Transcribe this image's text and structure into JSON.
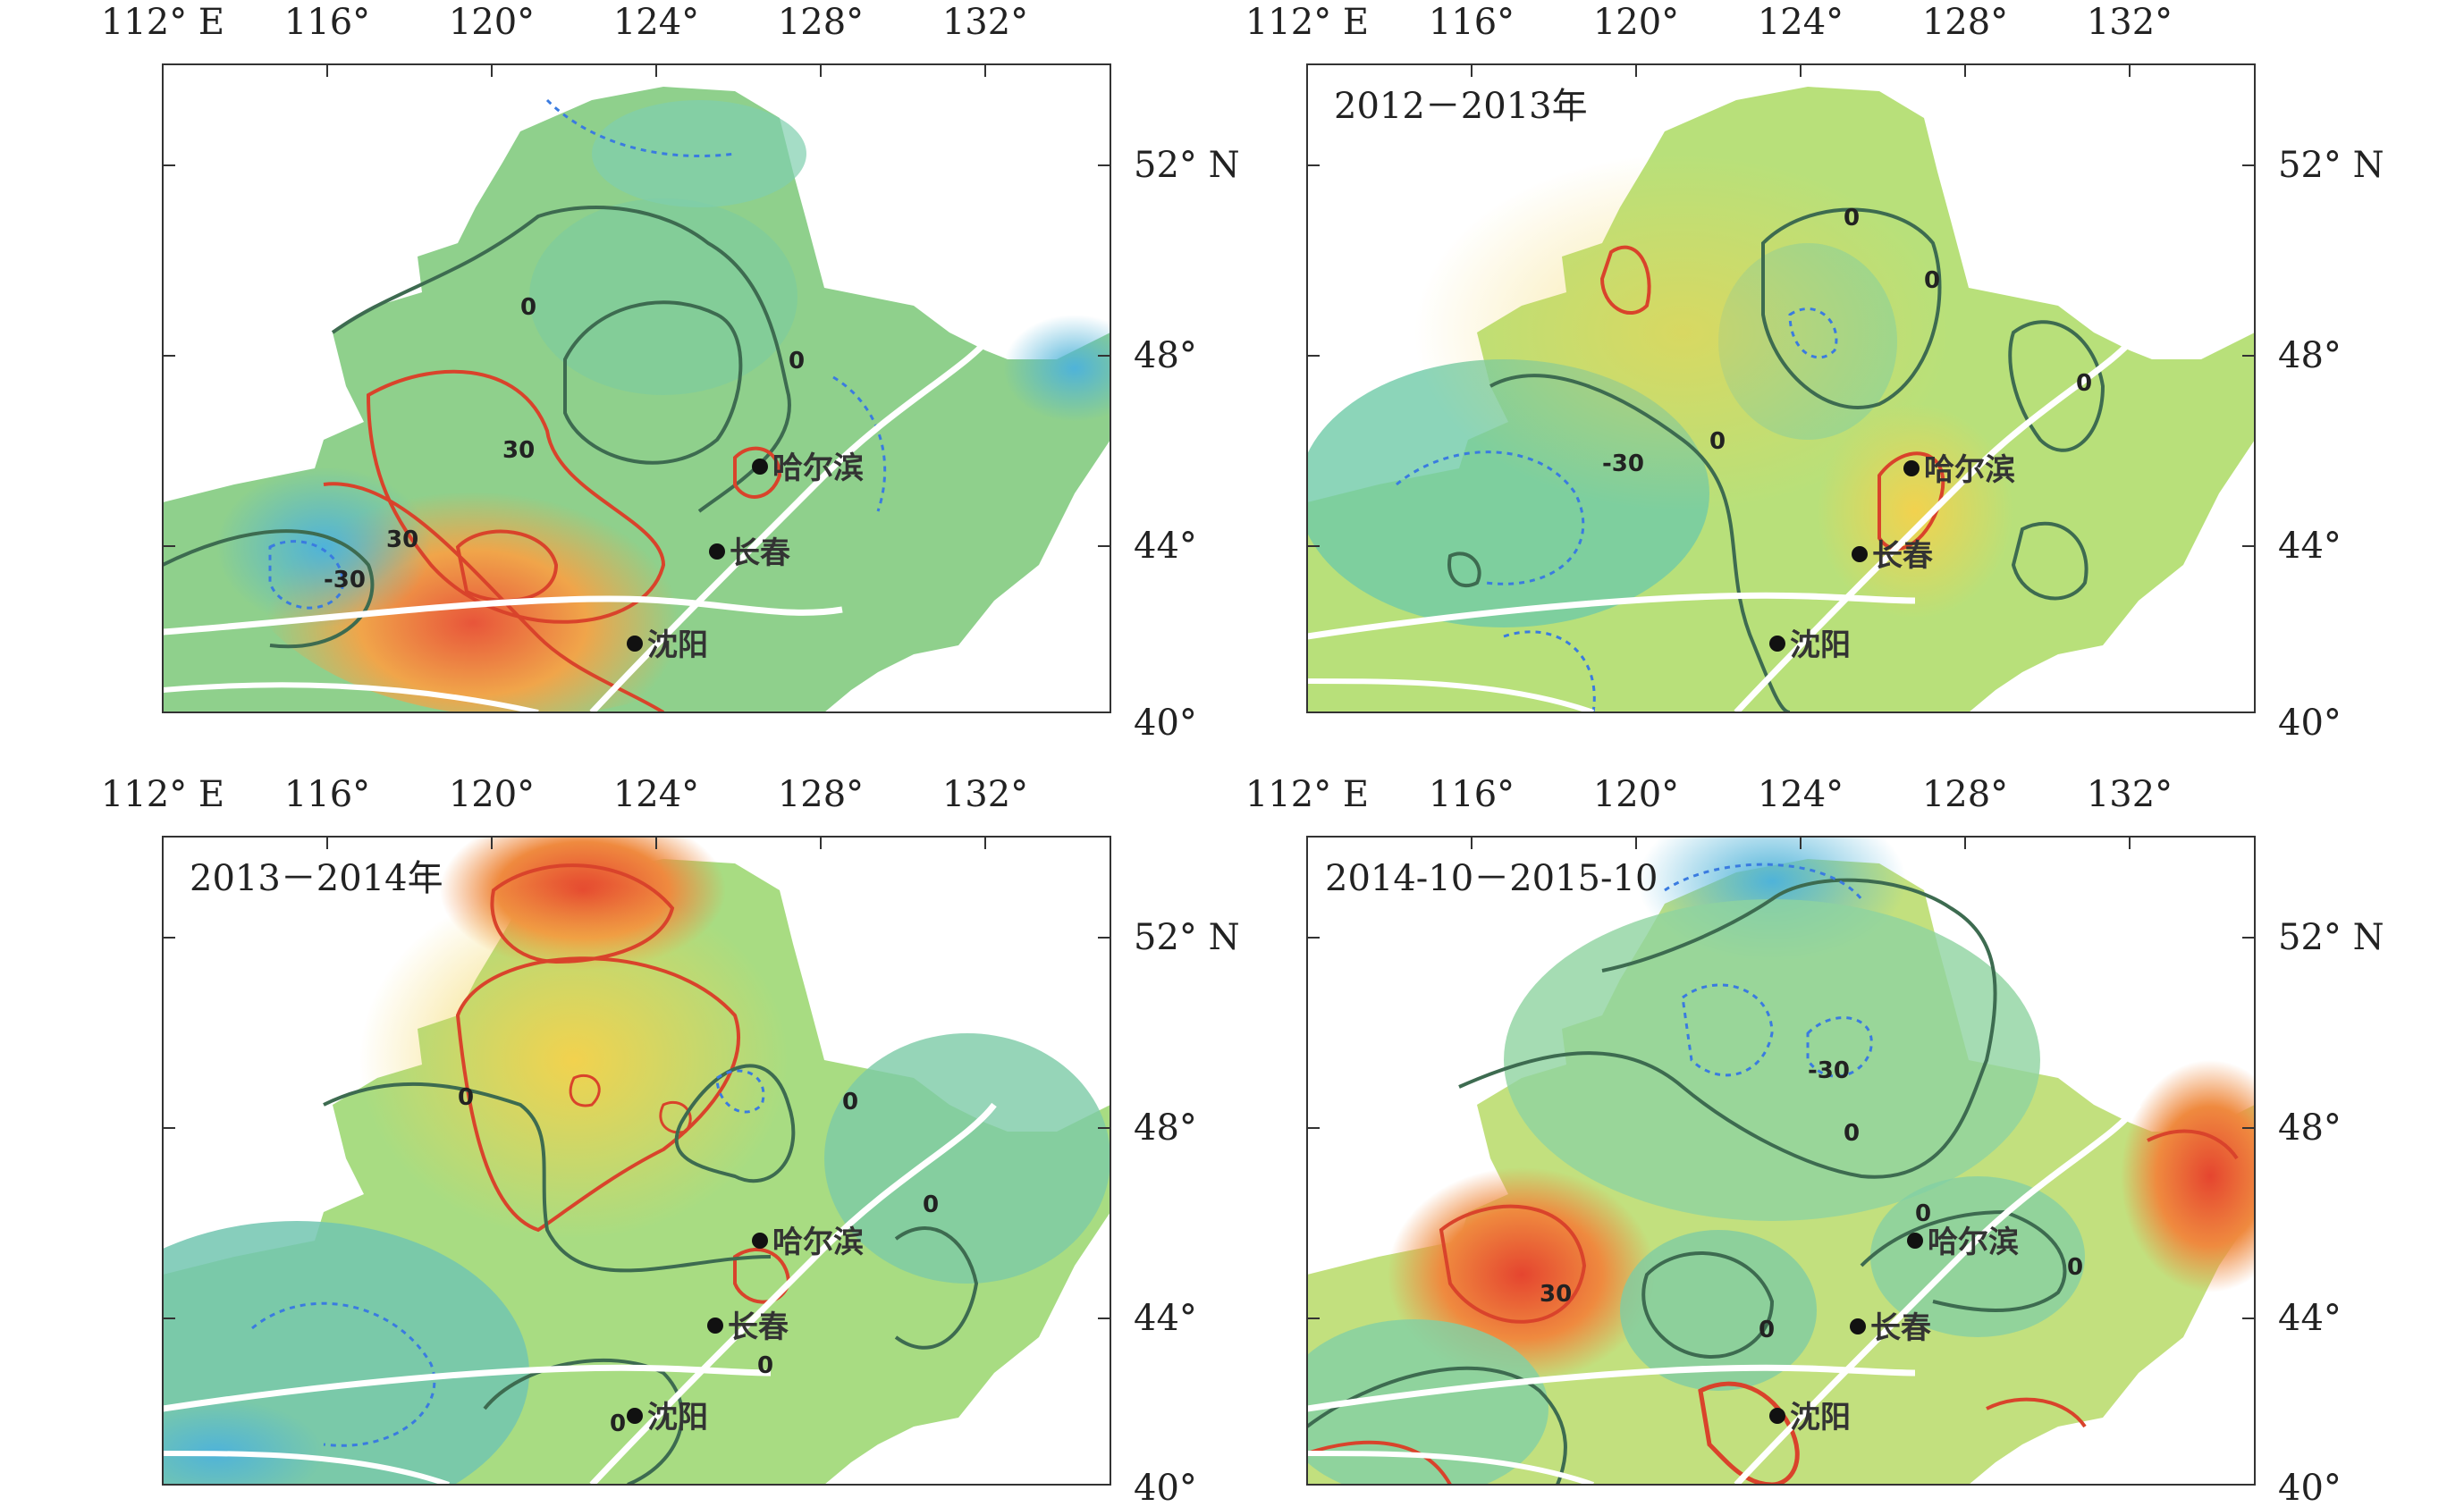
{
  "figure": {
    "lon_labels": [
      "112° E",
      "116°",
      "120°",
      "124°",
      "128°",
      "132°"
    ],
    "lat_labels": [
      "52° N",
      "48°",
      "44°",
      "40°"
    ],
    "cities": [
      "哈尔滨",
      "长春",
      "沈阳"
    ],
    "contour_labels": [
      "0",
      "30",
      "-30"
    ],
    "colors": {
      "contour_zero": "#3d6b50",
      "contour_positive": "#d9432b",
      "contour_negative": "#3a7be0",
      "railway": "#ffffff"
    }
  },
  "panels": [
    {
      "title": ""
    },
    {
      "title": "2012－2013年"
    },
    {
      "title": "2013－2014年"
    },
    {
      "title": "2014-10－2015-10"
    }
  ]
}
